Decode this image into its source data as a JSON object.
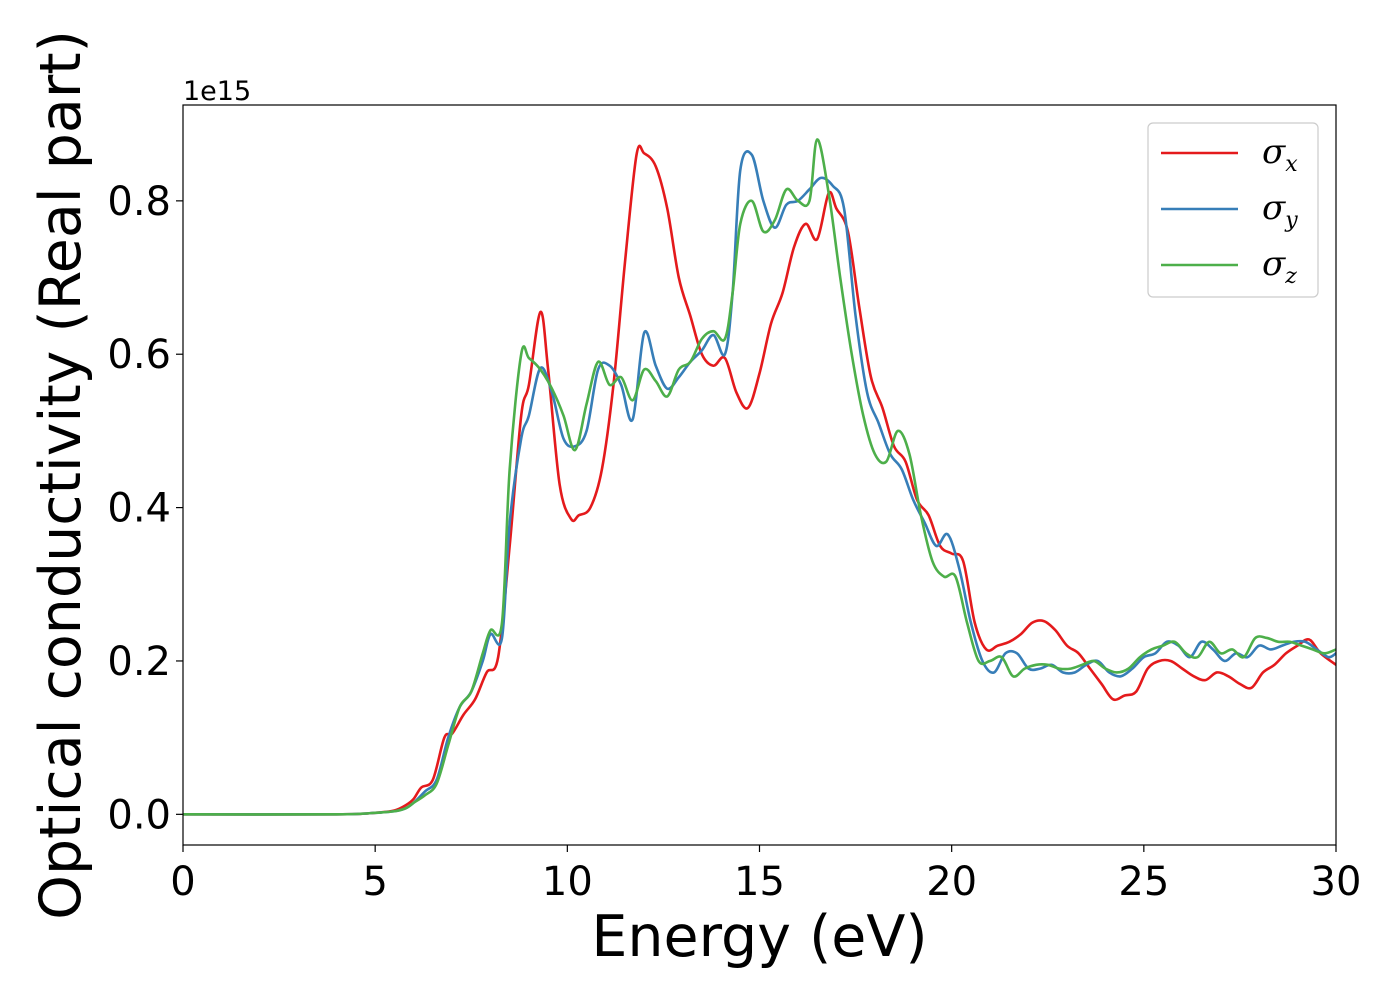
{
  "chart_data": {
    "type": "line",
    "xlabel": "Energy (eV)",
    "ylabel": "Optical conductivity (Real part)",
    "y_offset_label": "1e15",
    "xlim": [
      0,
      30
    ],
    "ylim": [
      -0.04,
      0.925
    ],
    "xticks": [
      0,
      5,
      10,
      15,
      20,
      25,
      30
    ],
    "xtick_labels": [
      "0",
      "5",
      "10",
      "15",
      "20",
      "25",
      "30"
    ],
    "yticks": [
      0.0,
      0.2,
      0.4,
      0.6,
      0.8
    ],
    "ytick_labels": [
      "0.0",
      "0.2",
      "0.4",
      "0.6",
      "0.8"
    ],
    "grid": false,
    "legend_position": "top-right",
    "series": [
      {
        "name": "σx",
        "symbol": "σ",
        "subscript": "x",
        "color": "#e41a1c",
        "x": [
          0,
          4,
          5,
          5.5,
          5.8,
          6.0,
          6.2,
          6.5,
          6.8,
          7.0,
          7.3,
          7.6,
          7.9,
          8.2,
          8.5,
          8.8,
          9.0,
          9.3,
          9.5,
          9.8,
          10.1,
          10.3,
          10.6,
          10.9,
          11.2,
          11.5,
          11.8,
          12.0,
          12.3,
          12.6,
          12.9,
          13.2,
          13.5,
          13.8,
          14.1,
          14.4,
          14.7,
          15.0,
          15.3,
          15.6,
          15.9,
          16.2,
          16.5,
          16.8,
          17.0,
          17.3,
          17.6,
          17.9,
          18.2,
          18.5,
          18.8,
          19.1,
          19.4,
          19.7,
          20.0,
          20.3,
          20.6,
          20.9,
          21.2,
          21.5,
          21.8,
          22.1,
          22.4,
          22.7,
          23.0,
          23.3,
          23.6,
          23.9,
          24.2,
          24.5,
          24.8,
          25.1,
          25.4,
          25.7,
          26.0,
          26.3,
          26.6,
          26.9,
          27.2,
          27.5,
          27.8,
          28.1,
          28.4,
          28.7,
          29.0,
          29.3,
          29.6,
          30.0
        ],
        "values": [
          0.0,
          0.0,
          0.002,
          0.005,
          0.012,
          0.02,
          0.035,
          0.045,
          0.1,
          0.105,
          0.13,
          0.15,
          0.185,
          0.205,
          0.35,
          0.52,
          0.56,
          0.655,
          0.58,
          0.43,
          0.385,
          0.39,
          0.4,
          0.45,
          0.56,
          0.72,
          0.86,
          0.862,
          0.845,
          0.79,
          0.7,
          0.65,
          0.6,
          0.585,
          0.595,
          0.55,
          0.53,
          0.575,
          0.64,
          0.68,
          0.74,
          0.77,
          0.75,
          0.81,
          0.79,
          0.76,
          0.66,
          0.57,
          0.53,
          0.48,
          0.46,
          0.41,
          0.39,
          0.35,
          0.34,
          0.33,
          0.25,
          0.215,
          0.22,
          0.225,
          0.235,
          0.25,
          0.252,
          0.24,
          0.22,
          0.21,
          0.19,
          0.17,
          0.15,
          0.155,
          0.16,
          0.19,
          0.2,
          0.2,
          0.19,
          0.18,
          0.175,
          0.185,
          0.18,
          0.17,
          0.165,
          0.185,
          0.195,
          0.21,
          0.22,
          0.228,
          0.21,
          0.195
        ]
      },
      {
        "name": "σy",
        "symbol": "σ",
        "subscript": "y",
        "color": "#377eb8",
        "x": [
          0,
          4,
          5,
          5.5,
          5.8,
          6.0,
          6.3,
          6.6,
          6.9,
          7.2,
          7.5,
          7.8,
          8.0,
          8.3,
          8.5,
          8.8,
          9.0,
          9.3,
          9.6,
          9.9,
          10.2,
          10.5,
          10.8,
          11.1,
          11.4,
          11.7,
          12.0,
          12.3,
          12.6,
          12.9,
          13.2,
          13.5,
          13.8,
          14.1,
          14.3,
          14.5,
          14.8,
          15.1,
          15.4,
          15.7,
          16.0,
          16.3,
          16.6,
          16.9,
          17.2,
          17.5,
          17.8,
          18.1,
          18.4,
          18.7,
          19.0,
          19.3,
          19.6,
          19.9,
          20.2,
          20.5,
          20.8,
          21.1,
          21.4,
          21.7,
          22.0,
          22.3,
          22.6,
          22.9,
          23.2,
          23.5,
          23.8,
          24.1,
          24.4,
          24.7,
          25.0,
          25.3,
          25.6,
          25.9,
          26.2,
          26.5,
          26.8,
          27.1,
          27.4,
          27.7,
          28.0,
          28.3,
          28.6,
          28.9,
          29.2,
          29.5,
          29.8,
          30.0
        ],
        "values": [
          0.0,
          0.0,
          0.002,
          0.004,
          0.008,
          0.015,
          0.03,
          0.045,
          0.1,
          0.14,
          0.16,
          0.2,
          0.235,
          0.23,
          0.38,
          0.49,
          0.52,
          0.582,
          0.55,
          0.49,
          0.48,
          0.5,
          0.58,
          0.585,
          0.56,
          0.515,
          0.628,
          0.585,
          0.555,
          0.57,
          0.59,
          0.605,
          0.625,
          0.6,
          0.68,
          0.84,
          0.86,
          0.8,
          0.765,
          0.795,
          0.8,
          0.815,
          0.83,
          0.82,
          0.79,
          0.65,
          0.55,
          0.51,
          0.47,
          0.45,
          0.41,
          0.38,
          0.35,
          0.365,
          0.32,
          0.25,
          0.2,
          0.185,
          0.21,
          0.21,
          0.19,
          0.19,
          0.195,
          0.185,
          0.185,
          0.195,
          0.2,
          0.185,
          0.18,
          0.19,
          0.205,
          0.21,
          0.225,
          0.22,
          0.205,
          0.225,
          0.215,
          0.2,
          0.21,
          0.205,
          0.22,
          0.215,
          0.22,
          0.225,
          0.225,
          0.215,
          0.205,
          0.21
        ]
      },
      {
        "name": "σz",
        "symbol": "σ",
        "subscript": "z",
        "color": "#4daf4a",
        "x": [
          0,
          4,
          5,
          5.5,
          5.8,
          6.0,
          6.3,
          6.6,
          6.9,
          7.2,
          7.5,
          7.8,
          8.0,
          8.3,
          8.5,
          8.8,
          9.0,
          9.3,
          9.6,
          9.9,
          10.2,
          10.5,
          10.8,
          11.1,
          11.4,
          11.7,
          12.0,
          12.3,
          12.6,
          12.9,
          13.2,
          13.5,
          13.8,
          14.1,
          14.3,
          14.5,
          14.8,
          15.1,
          15.4,
          15.7,
          16.0,
          16.3,
          16.5,
          16.8,
          17.1,
          17.4,
          17.7,
          18.0,
          18.3,
          18.6,
          18.9,
          19.2,
          19.5,
          19.8,
          20.1,
          20.4,
          20.7,
          21.0,
          21.3,
          21.6,
          21.9,
          22.2,
          22.5,
          22.8,
          23.1,
          23.4,
          23.7,
          24.0,
          24.3,
          24.6,
          24.9,
          25.2,
          25.5,
          25.8,
          26.1,
          26.4,
          26.7,
          27.0,
          27.3,
          27.6,
          27.9,
          28.2,
          28.5,
          28.8,
          29.1,
          29.4,
          29.7,
          30.0
        ],
        "values": [
          0.0,
          0.0,
          0.002,
          0.004,
          0.008,
          0.015,
          0.025,
          0.04,
          0.09,
          0.14,
          0.16,
          0.21,
          0.24,
          0.25,
          0.45,
          0.6,
          0.595,
          0.58,
          0.555,
          0.52,
          0.475,
          0.535,
          0.59,
          0.56,
          0.57,
          0.54,
          0.58,
          0.565,
          0.545,
          0.58,
          0.59,
          0.62,
          0.63,
          0.62,
          0.68,
          0.77,
          0.8,
          0.76,
          0.775,
          0.815,
          0.8,
          0.8,
          0.88,
          0.81,
          0.7,
          0.6,
          0.52,
          0.47,
          0.46,
          0.5,
          0.47,
          0.39,
          0.33,
          0.31,
          0.31,
          0.25,
          0.2,
          0.2,
          0.205,
          0.18,
          0.19,
          0.195,
          0.195,
          0.19,
          0.19,
          0.195,
          0.2,
          0.19,
          0.185,
          0.19,
          0.205,
          0.215,
          0.22,
          0.225,
          0.21,
          0.205,
          0.225,
          0.21,
          0.215,
          0.205,
          0.23,
          0.23,
          0.225,
          0.225,
          0.22,
          0.215,
          0.21,
          0.215
        ]
      }
    ]
  }
}
